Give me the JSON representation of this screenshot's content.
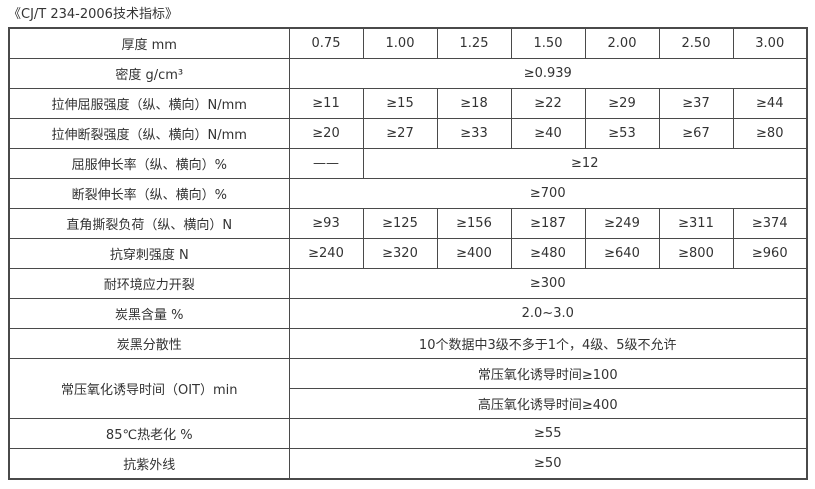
{
  "page_title": "《CJ/T 234-2006技术指标》",
  "table": {
    "rows": [
      {
        "label": "厚度 mm",
        "values": [
          "0.75",
          "1.00",
          "1.25",
          "1.50",
          "2.00",
          "2.50",
          "3.00"
        ]
      },
      {
        "label": "密度 g/cm³",
        "merged": "≥0.939"
      },
      {
        "label": "拉伸屈服强度（纵、横向）N/mm",
        "values": [
          "≥11",
          "≥15",
          "≥18",
          "≥22",
          "≥29",
          "≥37",
          "≥44"
        ]
      },
      {
        "label": "拉伸断裂强度（纵、横向）N/mm",
        "values": [
          "≥20",
          "≥27",
          "≥33",
          "≥40",
          "≥53",
          "≥67",
          "≥80"
        ]
      },
      {
        "label": "屈服伸长率（纵、横向）%",
        "first": "——",
        "merged": "≥12"
      },
      {
        "label": "断裂伸长率（纵、横向）%",
        "merged": "≥700"
      },
      {
        "label": "直角撕裂负荷（纵、横向）N",
        "values": [
          "≥93",
          "≥125",
          "≥156",
          "≥187",
          "≥249",
          "≥311",
          "≥374"
        ]
      },
      {
        "label": "抗穿刺强度 N",
        "values": [
          "≥240",
          "≥320",
          "≥400",
          "≥480",
          "≥640",
          "≥800",
          "≥960"
        ]
      },
      {
        "label": "耐环境应力开裂",
        "merged": "≥300"
      },
      {
        "label": "炭黑含量 %",
        "merged": "2.0~3.0"
      },
      {
        "label": "炭黑分散性",
        "merged": "10个数据中3级不多于1个，4级、5级不允许"
      },
      {
        "label": "常压氧化诱导时间（OIT）min",
        "sub_rows": [
          "常压氧化诱导时间≥100",
          "高压氧化诱导时间≥400"
        ]
      },
      {
        "label": "85℃热老化 %",
        "merged": "≥55"
      },
      {
        "label": "抗紫外线",
        "merged": "≥50"
      }
    ],
    "colors": {
      "text": "#333333",
      "border": "#4a4a4a",
      "background": "#ffffff"
    }
  }
}
